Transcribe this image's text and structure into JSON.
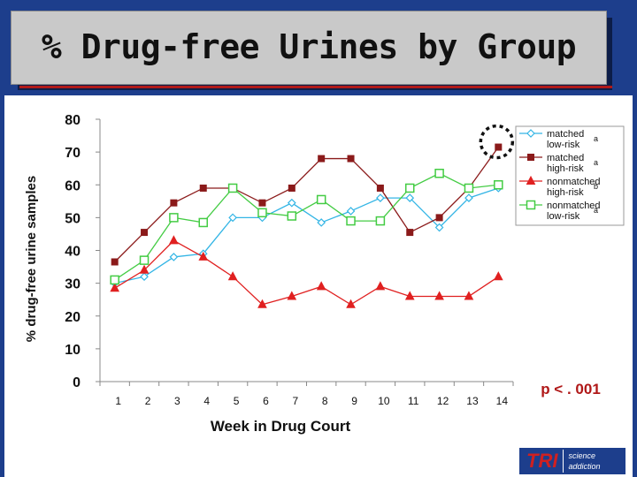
{
  "slide": {
    "title": "% Drug-free Urines by Group"
  },
  "logo": {
    "mark": "TRI",
    "line1": "science",
    "line2": "addiction"
  },
  "chart_data": {
    "type": "line",
    "ylabel": "% drug-free urine samples",
    "xlabel": "Week in Drug Court",
    "ylim": [
      0,
      80
    ],
    "yticks": [
      0,
      10,
      20,
      30,
      40,
      50,
      60,
      70,
      80
    ],
    "x": [
      1,
      2,
      3,
      4,
      5,
      6,
      7,
      8,
      9,
      10,
      11,
      12,
      13,
      14
    ],
    "grid": false,
    "legend_position": "top-right",
    "series": [
      {
        "name": "matched low-risk",
        "superscript": "a",
        "color": "#33b5e5",
        "marker": "diamond",
        "values": [
          30,
          32,
          38,
          39,
          50,
          50,
          54.5,
          48.5,
          52,
          56,
          56,
          47,
          56,
          59
        ]
      },
      {
        "name": "matched high-risk",
        "superscript": "a",
        "color": "#8b1a1a",
        "marker": "square",
        "values": [
          36.5,
          45.5,
          54.5,
          59,
          59,
          54.5,
          59,
          68,
          68,
          59,
          45.5,
          50,
          59,
          71.5
        ]
      },
      {
        "name": "nonmatched high-risk",
        "superscript": "b",
        "color": "#e02020",
        "marker": "triangle",
        "values": [
          28.5,
          34,
          43,
          38,
          32,
          23.5,
          26,
          29,
          23.5,
          29,
          26,
          26,
          26,
          32
        ]
      },
      {
        "name": "nonmatched low-risk",
        "superscript": "a",
        "color": "#44cc44",
        "marker": "square-open",
        "values": [
          31,
          37,
          50,
          48.5,
          59,
          51.5,
          50.5,
          55.5,
          49,
          49,
          59,
          63.5,
          59,
          60
        ]
      }
    ],
    "annotation": "p < . 001",
    "highlight_point": {
      "series": "matched high-risk",
      "x": 14,
      "y": 71.5
    }
  }
}
